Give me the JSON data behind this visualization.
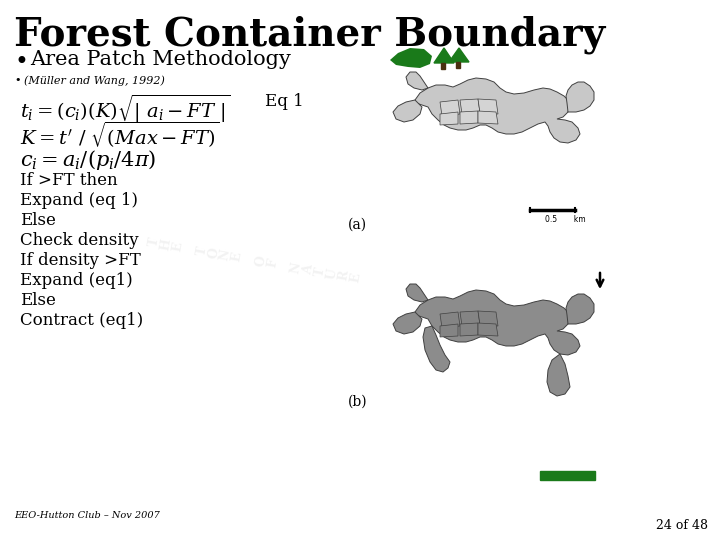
{
  "title": "Forest Container Boundary",
  "bullet1": "Area Patch Methodology",
  "bullet2": "(Müller and Wang, 1992)",
  "eq1_label": "Eq 1",
  "flowchart_lines": [
    "If >FT then",
    "Expand (eq 1)",
    "Else",
    "Check density",
    "If density >FT",
    "Expand (eq1)",
    "Else",
    "Contract (eq1)"
  ],
  "label_a": "(a)",
  "label_b": "(b)",
  "footer": "EEO-Hutton Club – Nov 2007",
  "page": "24 of 48",
  "bg_color": "#ffffff",
  "text_color": "#000000",
  "green_color": "#1a7a1a",
  "map_light_gray": "#c8c8c8",
  "map_dark_gray": "#8c8c8c",
  "map_edge": "#404040",
  "title_fontsize": 28,
  "bullet1_fontsize": 15,
  "bullet2_fontsize": 8,
  "eq_fontsize": 13,
  "body_fontsize": 12,
  "label_fontsize": 10,
  "footer_fontsize": 7,
  "page_fontsize": 9
}
